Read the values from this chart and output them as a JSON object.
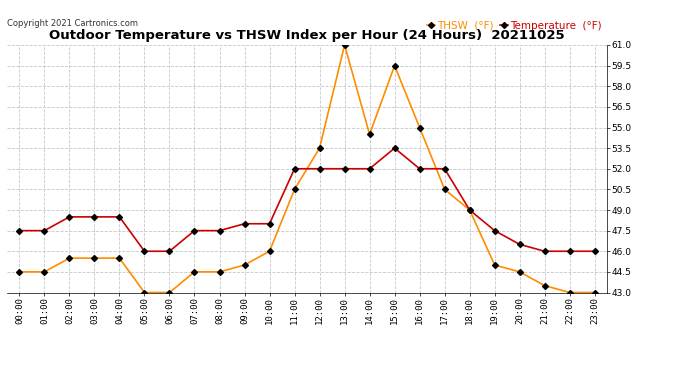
{
  "title": "Outdoor Temperature vs THSW Index per Hour (24 Hours)  20211025",
  "copyright": "Copyright 2021 Cartronics.com",
  "hours": [
    "00:00",
    "01:00",
    "02:00",
    "03:00",
    "04:00",
    "05:00",
    "06:00",
    "07:00",
    "08:00",
    "09:00",
    "10:00",
    "11:00",
    "12:00",
    "13:00",
    "14:00",
    "15:00",
    "16:00",
    "17:00",
    "18:00",
    "19:00",
    "20:00",
    "21:00",
    "22:00",
    "23:00"
  ],
  "temperature": [
    47.5,
    47.5,
    48.5,
    48.5,
    48.5,
    46.0,
    46.0,
    47.5,
    47.5,
    48.0,
    48.0,
    52.0,
    52.0,
    52.0,
    52.0,
    53.5,
    52.0,
    52.0,
    49.0,
    47.5,
    46.5,
    46.0,
    46.0,
    46.0
  ],
  "thsw": [
    44.5,
    44.5,
    45.5,
    45.5,
    45.5,
    43.0,
    43.0,
    44.5,
    44.5,
    45.0,
    46.0,
    50.5,
    53.5,
    61.0,
    54.5,
    59.5,
    55.0,
    50.5,
    49.0,
    45.0,
    44.5,
    43.5,
    43.0,
    43.0
  ],
  "temp_color": "#cc0000",
  "thsw_color": "#ff8c00",
  "marker_color": "#000000",
  "ylim_min": 43.0,
  "ylim_max": 61.0,
  "ytick_step": 1.5,
  "legend_thsw": "THSW  (°F)",
  "legend_temp": "Temperature  (°F)",
  "background_color": "#ffffff",
  "grid_color": "#c8c8c8"
}
